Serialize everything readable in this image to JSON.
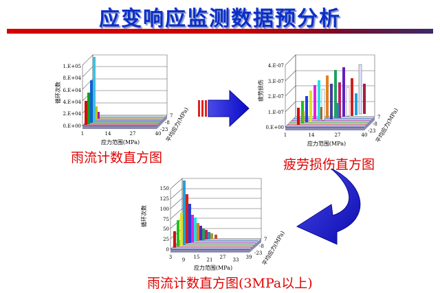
{
  "title": "应变响应监测数据预分析",
  "colors": {
    "title": "#0a2fc8",
    "caption": "#e00000",
    "rule_start": "#d40000",
    "rule_end": "#3a2a6a",
    "arrow": "#1a1ad8"
  },
  "charts": [
    {
      "id": "rainflow-full",
      "caption": "雨流计数直方图",
      "zlabel": "循环次数",
      "xlabel": "应力范围(MPa)",
      "ylabel": "平均应力(MPa)",
      "zticks": [
        "1.E+05",
        "8.E+04",
        "6.E+04",
        "4.E+04",
        "2.E+04",
        "0.E+00"
      ],
      "xticks": [
        "1",
        "14",
        "27",
        "40"
      ],
      "yticks": [
        "7",
        "-8",
        "-23"
      ]
    },
    {
      "id": "fatigue-damage",
      "caption": "疲劳损伤直方图",
      "zlabel": "疲劳损伤",
      "xlabel": "应力范围(MPa)",
      "ylabel": "平均应力(MPa)",
      "zticks": [
        "4.E-07",
        "3.E-07",
        "2.E-07",
        "1.E-07",
        "0.E+00"
      ],
      "xticks": [
        "1",
        "14",
        "27",
        "40"
      ],
      "yticks": [
        "7",
        "-8",
        "-23"
      ]
    },
    {
      "id": "rainflow-3mpa",
      "caption": "雨流计数直方图(3MPa以上)",
      "zlabel": "循环次数",
      "xlabel": "应力范围(MPa)",
      "ylabel": "平均应力(MPa)",
      "zticks": [
        "150",
        "125",
        "100",
        "75",
        "50",
        "25",
        "0"
      ],
      "xticks": [
        "3",
        "9",
        "15",
        "21",
        "27",
        "33",
        "39"
      ],
      "yticks": [
        "7",
        "-8",
        "-23"
      ]
    }
  ],
  "arrows": [
    {
      "name": "arrow-right",
      "direction": "right"
    },
    {
      "name": "arrow-curved",
      "direction": "down-left"
    }
  ]
}
